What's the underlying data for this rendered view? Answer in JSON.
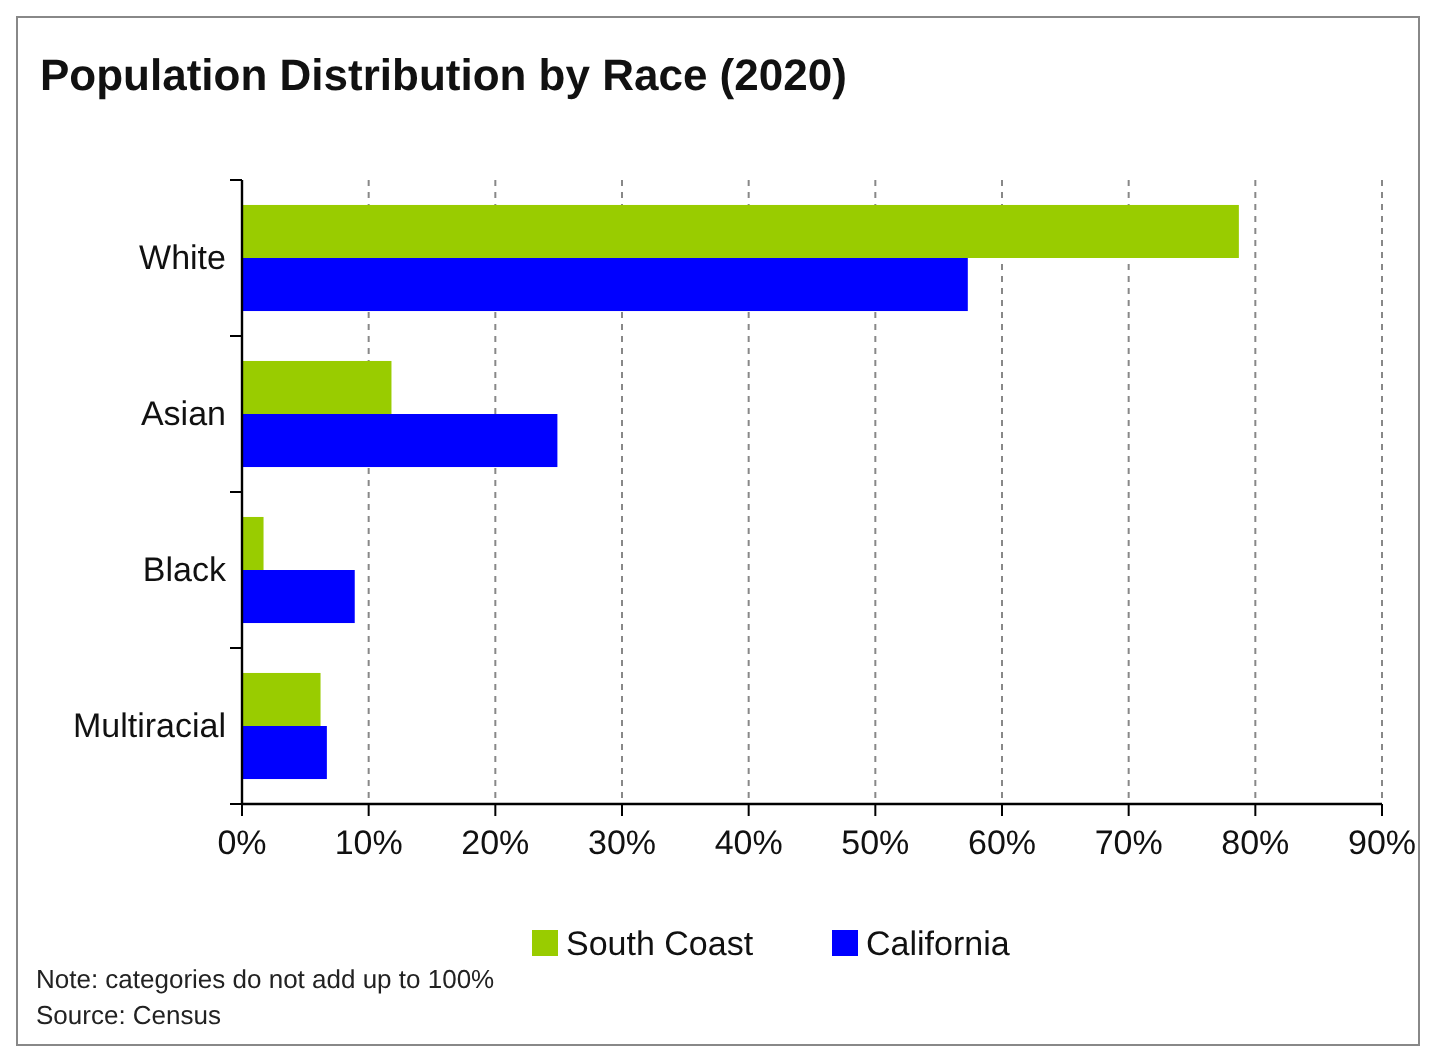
{
  "chart_data": {
    "type": "bar",
    "orientation": "horizontal",
    "title": "Population Distribution by Race (2020)",
    "categories": [
      "White",
      "Asian",
      "Black",
      "Multiracial"
    ],
    "series": [
      {
        "name": "South Coast",
        "color": "#99cc00",
        "values": [
          78.7,
          11.8,
          1.7,
          6.2
        ]
      },
      {
        "name": "California",
        "color": "#0000ff",
        "values": [
          57.3,
          24.9,
          8.9,
          6.7
        ]
      }
    ],
    "xlim": [
      0,
      90
    ],
    "xticks": [
      {
        "value": 0,
        "label": "0%"
      },
      {
        "value": 10,
        "label": "10%"
      },
      {
        "value": 20,
        "label": "20%"
      },
      {
        "value": 30,
        "label": "30%"
      },
      {
        "value": 40,
        "label": "40%"
      },
      {
        "value": 50,
        "label": "50%"
      },
      {
        "value": 60,
        "label": "60%"
      },
      {
        "value": 70,
        "label": "70%"
      },
      {
        "value": 80,
        "label": "80%"
      },
      {
        "value": 90,
        "label": "90%"
      }
    ],
    "grid": "x",
    "legend": "bottom",
    "annotations": [
      "Note: categories do not add up to 100%",
      "Source: Census"
    ]
  }
}
